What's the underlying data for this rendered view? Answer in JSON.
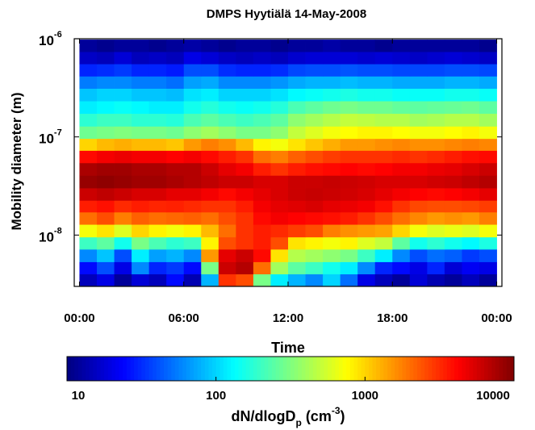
{
  "chart_data": {
    "type": "heatmap",
    "title": "DMPS Hyytiälä 14-May-2008",
    "xlabel": "Time",
    "ylabel": "Mobility diameter  (m)",
    "xlim": [
      -0.3,
      24.3
    ],
    "xticks": [
      {
        "value": 0,
        "label": "00:00"
      },
      {
        "value": 6,
        "label": "06:00"
      },
      {
        "value": 12,
        "label": "12:00"
      },
      {
        "value": 18,
        "label": "18:00"
      },
      {
        "value": 24,
        "label": "00:00"
      }
    ],
    "ylim": [
      3e-09,
      1e-06
    ],
    "yscale": "log",
    "yticks": [
      {
        "value": 1e-08,
        "label": "10",
        "exponent": "-8"
      },
      {
        "value": 1e-07,
        "label": "10",
        "exponent": "-7"
      },
      {
        "value": 1e-06,
        "label": "10",
        "exponent": "-6"
      }
    ],
    "x": [
      0.5,
      1.5,
      2.5,
      3.5,
      4.5,
      5.5,
      6.5,
      7.5,
      8.5,
      9.5,
      10.5,
      11.5,
      12.5,
      13.5,
      14.5,
      15.5,
      16.5,
      17.5,
      18.5,
      19.5,
      20.5,
      21.5,
      22.5,
      23.5
    ],
    "y": [
      3.5e-09,
      4.6e-09,
      6.2e-09,
      8.3e-09,
      1.1e-08,
      1.5e-08,
      1.96e-08,
      2.6e-08,
      3.5e-08,
      4.7e-08,
      6.3e-08,
      8.4e-08,
      1.1e-07,
      1.5e-07,
      2e-07,
      2.7e-07,
      3.6e-07,
      4.8e-07,
      6.4e-07,
      8.5e-07
    ],
    "z": [
      [
        15,
        20,
        12,
        18,
        15,
        25,
        14,
        80,
        3000,
        2500,
        300,
        120,
        80,
        60,
        100,
        50,
        20,
        15,
        12,
        18,
        14,
        12,
        15,
        12
      ],
      [
        25,
        40,
        20,
        60,
        30,
        35,
        25,
        300,
        6000,
        7000,
        2000,
        400,
        250,
        200,
        150,
        120,
        60,
        30,
        25,
        20,
        30,
        18,
        22,
        20
      ],
      [
        60,
        90,
        40,
        120,
        70,
        80,
        60,
        1500,
        5000,
        6000,
        4000,
        900,
        450,
        400,
        350,
        300,
        200,
        120,
        60,
        40,
        50,
        45,
        35,
        40
      ],
      [
        200,
        250,
        150,
        300,
        220,
        180,
        200,
        800,
        2500,
        3000,
        3500,
        2500,
        900,
        800,
        700,
        800,
        600,
        500,
        250,
        150,
        180,
        150,
        130,
        160
      ],
      [
        700,
        900,
        600,
        1000,
        800,
        700,
        800,
        1200,
        2000,
        3000,
        3500,
        3200,
        2800,
        2500,
        1800,
        1600,
        1500,
        1400,
        1000,
        700,
        600,
        650,
        600,
        700
      ],
      [
        2000,
        2500,
        1800,
        2200,
        2000,
        2100,
        2200,
        2000,
        2500,
        3000,
        4000,
        4500,
        4200,
        4000,
        3800,
        3500,
        3000,
        2500,
        2000,
        1700,
        1500,
        1600,
        1500,
        1800
      ],
      [
        3500,
        3800,
        3200,
        3500,
        3300,
        3400,
        3200,
        3000,
        3000,
        3500,
        4500,
        5000,
        5200,
        5500,
        5000,
        4800,
        4500,
        3800,
        3000,
        2600,
        2500,
        2500,
        2600,
        2800
      ],
      [
        6000,
        6500,
        6000,
        5500,
        5500,
        5000,
        5000,
        4500,
        4000,
        4500,
        5000,
        5500,
        6000,
        6200,
        6000,
        5800,
        5500,
        5000,
        4500,
        4200,
        4000,
        4200,
        4500,
        5000
      ],
      [
        8500,
        9000,
        8500,
        8000,
        8000,
        7500,
        7000,
        6500,
        6000,
        6000,
        5500,
        5500,
        6000,
        6000,
        6200,
        6000,
        5800,
        5500,
        5500,
        5500,
        5800,
        6000,
        6500,
        7000
      ],
      [
        7500,
        8000,
        8000,
        7500,
        7500,
        7000,
        7000,
        6000,
        5000,
        4500,
        3500,
        3000,
        3500,
        3800,
        4000,
        4200,
        4000,
        4200,
        4500,
        4500,
        4800,
        5000,
        5500,
        6000
      ],
      [
        4000,
        4500,
        4800,
        4500,
        4500,
        4200,
        4500,
        4000,
        3500,
        3000,
        2000,
        1800,
        2200,
        2500,
        2800,
        3000,
        3000,
        3000,
        3200,
        3000,
        3200,
        3500,
        3800,
        4000
      ],
      [
        1000,
        1200,
        1300,
        1200,
        1200,
        1100,
        1500,
        1800,
        1600,
        1200,
        800,
        700,
        900,
        1100,
        1300,
        1500,
        1500,
        1600,
        1700,
        1600,
        1600,
        1700,
        1800,
        1700
      ],
      [
        280,
        300,
        320,
        300,
        300,
        280,
        350,
        400,
        350,
        300,
        300,
        350,
        500,
        600,
        700,
        750,
        800,
        800,
        750,
        700,
        700,
        750,
        800,
        700
      ],
      [
        180,
        200,
        200,
        180,
        180,
        170,
        220,
        250,
        220,
        200,
        220,
        250,
        350,
        400,
        450,
        500,
        480,
        450,
        450,
        400,
        420,
        450,
        450,
        400
      ],
      [
        120,
        130,
        140,
        130,
        120,
        120,
        150,
        170,
        150,
        140,
        150,
        170,
        220,
        250,
        280,
        300,
        280,
        280,
        260,
        250,
        260,
        270,
        280,
        250
      ],
      [
        90,
        100,
        100,
        90,
        90,
        85,
        110,
        120,
        100,
        100,
        100,
        110,
        130,
        140,
        150,
        160,
        150,
        150,
        140,
        140,
        140,
        150,
        150,
        140
      ],
      [
        55,
        60,
        60,
        55,
        55,
        50,
        70,
        75,
        60,
        60,
        60,
        65,
        75,
        80,
        80,
        85,
        80,
        80,
        75,
        75,
        75,
        80,
        80,
        75
      ],
      [
        30,
        32,
        35,
        30,
        30,
        28,
        40,
        40,
        32,
        30,
        30,
        32,
        38,
        40,
        40,
        42,
        40,
        40,
        38,
        38,
        38,
        40,
        40,
        38
      ],
      [
        16,
        15,
        18,
        15,
        16,
        15,
        20,
        18,
        16,
        15,
        16,
        15,
        17,
        18,
        18,
        18,
        17,
        18,
        17,
        16,
        17,
        18,
        17,
        16
      ],
      [
        12,
        11,
        12,
        12,
        11,
        12,
        13,
        12,
        11,
        12,
        12,
        11,
        12,
        12,
        13,
        12,
        12,
        11,
        12,
        12,
        12,
        12,
        12,
        11
      ]
    ],
    "colormap": "jet",
    "clim": [
      10,
      10000
    ],
    "cticks": [
      10,
      100,
      1000,
      10000
    ],
    "colorbar_label_parts": [
      "dN/dlogD",
      "p",
      " (cm",
      "-3",
      ")"
    ]
  }
}
